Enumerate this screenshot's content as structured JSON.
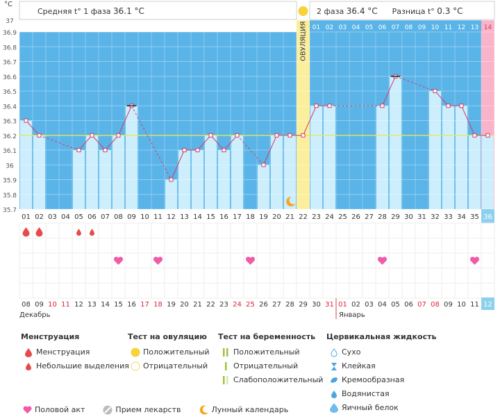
{
  "header": {
    "unit": "°C",
    "phase1_label": "Средняя t° 1 фаза",
    "phase1_value": "36.1 °C",
    "phase2_label": "2 фаза",
    "phase2_value": "36.4 °C",
    "diff_label": "Разница t°",
    "diff_value": "0.3 °C",
    "ovulation_label": "ОВУЛЯЦИЯ"
  },
  "colors": {
    "sky": "#5ab4e8",
    "bar": "#cdeefc",
    "ovulation": "#fbef9e",
    "pink": "#f9b3cb",
    "line": "#d33c6a",
    "coverline": "#e8e84a",
    "today_badge": "#8dd0ee"
  },
  "chart_data": {
    "type": "line",
    "title": "",
    "ylabel": "°C",
    "ylim": [
      35.7,
      37.0
    ],
    "y_ticks": [
      "35.7",
      "35.8",
      "35.9",
      "36",
      "36.1",
      "36.2",
      "36.3",
      "36.4",
      "36.5",
      "36.6",
      "36.7",
      "36.8",
      "36.9",
      "37"
    ],
    "cover_line": 36.2,
    "cycle_days": [
      "01",
      "02",
      "03",
      "04",
      "05",
      "06",
      "07",
      "08",
      "09",
      "10",
      "11",
      "12",
      "13",
      "14",
      "15",
      "16",
      "17",
      "18",
      "19",
      "20",
      "21",
      "22",
      "23",
      "24",
      "25",
      "26",
      "27",
      "28",
      "29",
      "30",
      "31",
      "32",
      "33",
      "34",
      "35",
      "36"
    ],
    "temperatures": [
      36.3,
      36.2,
      null,
      null,
      36.1,
      36.2,
      36.1,
      36.2,
      36.4,
      null,
      null,
      35.9,
      36.1,
      36.1,
      36.2,
      36.1,
      36.2,
      null,
      36.0,
      36.2,
      36.2,
      36.2,
      36.4,
      36.4,
      null,
      null,
      null,
      36.4,
      36.6,
      null,
      null,
      36.5,
      36.4,
      36.4,
      36.2,
      36.2
    ],
    "extremes_days": [
      9,
      29
    ],
    "ovulation_day": 22,
    "phase2_day_numbers": [
      "01",
      "02",
      "03",
      "04",
      "05",
      "06",
      "07",
      "08",
      "09",
      "10",
      "11",
      "12",
      "13",
      "14"
    ],
    "menstruation_days": [
      1,
      2
    ],
    "spotting_days": [
      5,
      6
    ],
    "intercourse_days": [
      8,
      11,
      18,
      28,
      35
    ],
    "moon_day": 21,
    "dates": [
      "08",
      "09",
      "10",
      "11",
      "12",
      "13",
      "14",
      "15",
      "16",
      "17",
      "18",
      "19",
      "20",
      "21",
      "22",
      "23",
      "24",
      "25",
      "26",
      "27",
      "28",
      "29",
      "30",
      "31",
      "01",
      "02",
      "03",
      "04",
      "05",
      "06",
      "07",
      "08",
      "09",
      "10",
      "11",
      "12"
    ],
    "red_date_indices": [
      2,
      3,
      9,
      10,
      16,
      17,
      23,
      24,
      30,
      31
    ],
    "month_dec": "Декабрь",
    "month_jan": "Январь",
    "today_index": 35
  },
  "legend": {
    "menstruation": {
      "title": "Менструация",
      "items": [
        "Менструация",
        "Небольшие выделения"
      ]
    },
    "ovulation_test": {
      "title": "Тест на овуляцию",
      "items": [
        "Положительный",
        "Отрицательный"
      ]
    },
    "pregnancy_test": {
      "title": "Тест на беременность",
      "items": [
        "Положительный",
        "Отрицательный",
        "Слабоположительный"
      ]
    },
    "cervical": {
      "title": "Цервикальная жидкость",
      "items": [
        "Сухо",
        "Клейкая",
        "Кремообразная",
        "Водянистая",
        "Яичный белок"
      ]
    },
    "bottom": [
      "Половой акт",
      "Прием лекарств",
      "Лунный календарь"
    ]
  }
}
